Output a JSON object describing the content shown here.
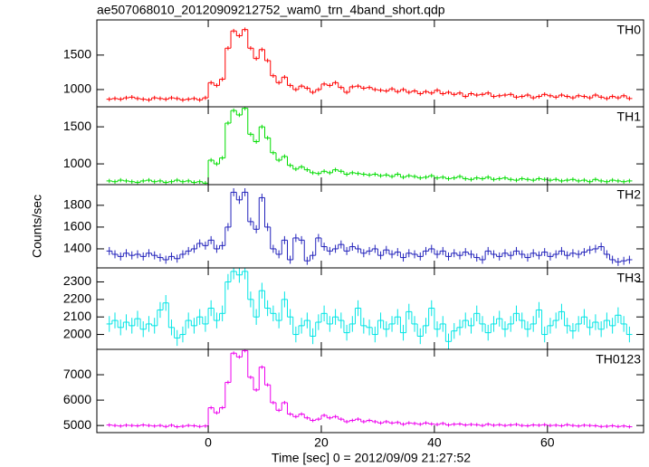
{
  "chart_data": {
    "type": "step",
    "title": "ae507068010_20120909212752_wam0_trn_4band_short.qdp",
    "xlabel": "Time [sec] 0 = 2012/09/09 21:27:52",
    "ylabel": "Counts/sec",
    "xlim": [
      -19.7,
      77
    ],
    "xticks": [
      0,
      20,
      40,
      60
    ],
    "xerr": 0.5,
    "x": [
      -17.5,
      -16.5,
      -15.5,
      -14.5,
      -13.5,
      -12.5,
      -11.5,
      -10.5,
      -9.5,
      -8.5,
      -7.5,
      -6.5,
      -5.5,
      -4.5,
      -3.5,
      -2.5,
      -1.5,
      -0.5,
      0.5,
      1.5,
      2.5,
      3.5,
      4.5,
      5.5,
      6.5,
      7.5,
      8.5,
      9.5,
      10.5,
      11.5,
      12.5,
      13.5,
      14.5,
      15.5,
      16.5,
      17.5,
      18.5,
      19.5,
      20.5,
      21.5,
      22.5,
      23.5,
      24.5,
      25.5,
      26.5,
      27.5,
      28.5,
      29.5,
      30.5,
      31.5,
      32.5,
      33.5,
      34.5,
      35.5,
      36.5,
      37.5,
      38.5,
      39.5,
      40.5,
      41.5,
      42.5,
      43.5,
      44.5,
      45.5,
      46.5,
      47.5,
      48.5,
      49.5,
      50.5,
      51.5,
      52.5,
      53.5,
      54.5,
      55.5,
      56.5,
      57.5,
      58.5,
      59.5,
      60.5,
      61.5,
      62.5,
      63.5,
      64.5,
      65.5,
      66.5,
      67.5,
      68.5,
      69.5,
      70.5,
      71.5,
      72.5,
      73.5,
      74.5
    ],
    "series": [
      {
        "name": "TH0",
        "color": "#ff0000",
        "error": 30,
        "ylim": [
          750,
          2010
        ],
        "yticks": [
          1000,
          1500
        ],
        "values": [
          860,
          870,
          860,
          880,
          890,
          870,
          860,
          850,
          880,
          870,
          860,
          880,
          870,
          850,
          860,
          870,
          850,
          880,
          1100,
          1060,
          1150,
          1600,
          1850,
          1780,
          1870,
          1600,
          1450,
          1580,
          1420,
          1200,
          1100,
          1180,
          1060,
          1000,
          1050,
          1020,
          960,
          1000,
          1080,
          1060,
          1100,
          1030,
          960,
          1040,
          1050,
          1020,
          1030,
          1000,
          990,
          980,
          1010,
          970,
          1000,
          960,
          980,
          940,
          970,
          950,
          990,
          940,
          960,
          930,
          950,
          900,
          940,
          920,
          930,
          950,
          900,
          910,
          920,
          930,
          890,
          900,
          920,
          880,
          900,
          930,
          910,
          890,
          920,
          900,
          880,
          910,
          900,
          880,
          920,
          890,
          870,
          900,
          880,
          910,
          870
        ]
      },
      {
        "name": "TH1",
        "color": "#00dd00",
        "error": 28,
        "ylim": [
          720,
          1770
        ],
        "yticks": [
          1000,
          1500
        ],
        "values": [
          770,
          760,
          780,
          770,
          760,
          750,
          770,
          780,
          760,
          770,
          750,
          760,
          780,
          760,
          770,
          750,
          760,
          740,
          1050,
          1000,
          1080,
          1550,
          1720,
          1660,
          1750,
          1400,
          1300,
          1500,
          1350,
          1150,
          1050,
          1100,
          980,
          930,
          960,
          920,
          880,
          870,
          900,
          880,
          920,
          900,
          860,
          880,
          870,
          860,
          850,
          860,
          840,
          850,
          830,
          860,
          820,
          840,
          830,
          810,
          820,
          840,
          810,
          820,
          800,
          810,
          830,
          800,
          790,
          810,
          800,
          820,
          790,
          800,
          810,
          790,
          780,
          800,
          790,
          780,
          800,
          790,
          780,
          790,
          770,
          780,
          790,
          770,
          780,
          760,
          790,
          770,
          760,
          780,
          770,
          760,
          770
        ]
      },
      {
        "name": "TH2",
        "color": "#2222bb",
        "error": 37,
        "ylim": [
          1225,
          1990
        ],
        "yticks": [
          1400,
          1600,
          1800
        ],
        "values": [
          1380,
          1350,
          1330,
          1360,
          1340,
          1350,
          1330,
          1360,
          1340,
          1320,
          1300,
          1330,
          1310,
          1350,
          1380,
          1400,
          1450,
          1430,
          1480,
          1400,
          1430,
          1600,
          1920,
          1850,
          1920,
          1650,
          1580,
          1870,
          1600,
          1400,
          1350,
          1480,
          1300,
          1500,
          1480,
          1290,
          1340,
          1500,
          1420,
          1380,
          1400,
          1440,
          1380,
          1420,
          1400,
          1360,
          1380,
          1400,
          1340,
          1390,
          1350,
          1370,
          1320,
          1360,
          1350,
          1330,
          1380,
          1400,
          1350,
          1380,
          1330,
          1360,
          1340,
          1370,
          1350,
          1320,
          1300,
          1380,
          1350,
          1330,
          1360,
          1340,
          1380,
          1350,
          1320,
          1360,
          1340,
          1370,
          1330,
          1350,
          1380,
          1340,
          1360,
          1350,
          1370,
          1390,
          1400,
          1420,
          1350,
          1300,
          1280,
          1290,
          1300
        ]
      },
      {
        "name": "TH3",
        "color": "#00e5e5",
        "error": 45,
        "ylim": [
          1915,
          2380
        ],
        "yticks": [
          2000,
          2100,
          2200,
          2300
        ],
        "values": [
          2060,
          2080,
          2040,
          2070,
          2050,
          2090,
          2030,
          2060,
          2050,
          2140,
          2180,
          2040,
          1980,
          2000,
          2080,
          2050,
          2100,
          2060,
          2150,
          2080,
          2120,
          2300,
          2360,
          2340,
          2360,
          2200,
          2100,
          2250,
          2150,
          2120,
          2080,
          2200,
          2100,
          2000,
          2050,
          2080,
          1990,
          2070,
          2120,
          2060,
          2100,
          2080,
          2010,
          2060,
          2150,
          2050,
          2040,
          2000,
          2080,
          2030,
          2060,
          2100,
          2010,
          2130,
          2060,
          1990,
          2050,
          2150,
          2030,
          2060,
          1960,
          2020,
          2040,
          2080,
          2050,
          2120,
          2060,
          2010,
          2060,
          2090,
          2030,
          2060,
          2120,
          2080,
          2030,
          2060,
          2140,
          2000,
          2050,
          2080,
          2130,
          2050,
          2020,
          2060,
          2100,
          2040,
          2070,
          2030,
          2080,
          2050,
          2110,
          2060,
          2000
        ]
      },
      {
        "name": "TH0123",
        "color": "#ee00ee",
        "error": 70,
        "ylim": [
          4720,
          8000
        ],
        "yticks": [
          5000,
          6000,
          7000
        ],
        "values": [
          5020,
          5000,
          4980,
          5010,
          5000,
          4990,
          5020,
          5000,
          4980,
          5000,
          4960,
          5010,
          4950,
          4970,
          5000,
          4990,
          4960,
          4980,
          5700,
          5500,
          5700,
          6700,
          7850,
          7700,
          7950,
          6900,
          6400,
          7300,
          6600,
          5900,
          5600,
          5900,
          5450,
          5350,
          5450,
          5300,
          5200,
          5250,
          5400,
          5300,
          5350,
          5250,
          5150,
          5200,
          5250,
          5150,
          5200,
          5150,
          5100,
          5150,
          5100,
          5120,
          5050,
          5100,
          5080,
          5050,
          5100,
          5060,
          5040,
          5080,
          5020,
          5050,
          5060,
          5020,
          5040,
          5030,
          5000,
          5050,
          5010,
          5030,
          5000,
          5020,
          5040,
          5000,
          4990,
          5020,
          5010,
          5030,
          5000,
          5010,
          4990,
          5030,
          5000,
          4980,
          5010,
          5000,
          4990,
          4960,
          4970,
          4990,
          4960,
          4980,
          4950
        ]
      }
    ]
  }
}
